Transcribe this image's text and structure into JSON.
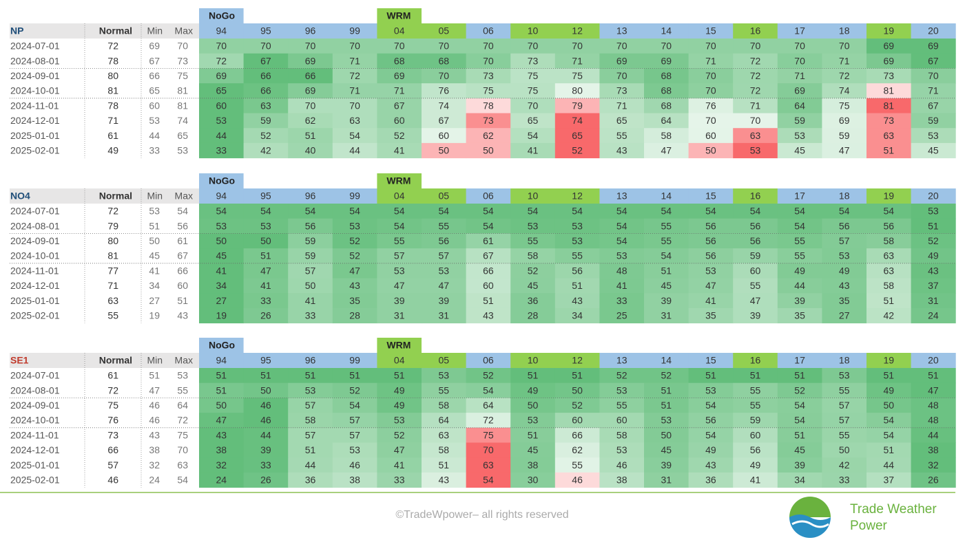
{
  "tables": [
    {
      "region": "NP",
      "region_color": "#1f4e79",
      "headers": [
        "Normal",
        "Min",
        "Max"
      ],
      "columns": [
        {
          "label": "94",
          "group": "NoGo",
          "color": "#9dc3e6"
        },
        {
          "label": "95",
          "color": "#9dc3e6"
        },
        {
          "label": "96",
          "color": "#9dc3e6"
        },
        {
          "label": "99",
          "color": "#9dc3e6"
        },
        {
          "label": "04",
          "group": "WRM",
          "color": "#92d050"
        },
        {
          "label": "05",
          "color": "#92d050"
        },
        {
          "label": "06",
          "color": "#9dc3e6"
        },
        {
          "label": "10",
          "color": "#92d050"
        },
        {
          "label": "12",
          "color": "#92d050"
        },
        {
          "label": "13",
          "color": "#9dc3e6"
        },
        {
          "label": "14",
          "color": "#9dc3e6"
        },
        {
          "label": "15",
          "color": "#9dc3e6"
        },
        {
          "label": "16",
          "color": "#92d050"
        },
        {
          "label": "17",
          "color": "#9dc3e6"
        },
        {
          "label": "18",
          "color": "#9dc3e6"
        },
        {
          "label": "19",
          "color": "#92d050"
        },
        {
          "label": "20",
          "color": "#9dc3e6"
        }
      ],
      "rows": [
        {
          "date": "2024-07-01",
          "normal": 72,
          "min": 69,
          "max": 70,
          "values": [
            70,
            70,
            70,
            70,
            70,
            70,
            70,
            70,
            70,
            70,
            70,
            70,
            70,
            70,
            70,
            69,
            69
          ]
        },
        {
          "date": "2024-08-01",
          "normal": 78,
          "min": 67,
          "max": 73,
          "values": [
            72,
            67,
            69,
            71,
            68,
            68,
            70,
            73,
            71,
            69,
            69,
            71,
            72,
            70,
            71,
            69,
            67
          ]
        },
        {
          "date": "2024-09-01",
          "normal": 80,
          "min": 66,
          "max": 75,
          "values": [
            69,
            66,
            66,
            72,
            69,
            70,
            73,
            75,
            75,
            70,
            68,
            70,
            72,
            71,
            72,
            73,
            70
          ]
        },
        {
          "date": "2024-10-01",
          "normal": 81,
          "min": 65,
          "max": 81,
          "values": [
            65,
            66,
            69,
            71,
            71,
            76,
            75,
            75,
            80,
            73,
            68,
            70,
            72,
            69,
            74,
            81,
            71
          ]
        },
        {
          "date": "2024-11-01",
          "normal": 78,
          "min": 60,
          "max": 81,
          "values": [
            60,
            63,
            70,
            70,
            67,
            74,
            78,
            70,
            79,
            71,
            68,
            76,
            71,
            64,
            75,
            81,
            67
          ]
        },
        {
          "date": "2024-12-01",
          "normal": 71,
          "min": 53,
          "max": 74,
          "values": [
            53,
            59,
            62,
            63,
            60,
            67,
            73,
            65,
            74,
            65,
            64,
            70,
            70,
            59,
            69,
            73,
            59
          ]
        },
        {
          "date": "2025-01-01",
          "normal": 61,
          "min": 44,
          "max": 65,
          "values": [
            44,
            52,
            51,
            54,
            52,
            60,
            62,
            54,
            65,
            55,
            58,
            60,
            63,
            53,
            59,
            63,
            53
          ]
        },
        {
          "date": "2025-02-01",
          "normal": 49,
          "min": 33,
          "max": 53,
          "values": [
            33,
            42,
            40,
            44,
            41,
            50,
            50,
            41,
            52,
            43,
            47,
            50,
            53,
            45,
            47,
            51,
            45
          ]
        }
      ]
    },
    {
      "region": "NO4",
      "region_color": "#1f4e79",
      "headers": [
        "Normal",
        "Min",
        "Max"
      ],
      "columns": [
        {
          "label": "94",
          "group": "NoGo",
          "color": "#9dc3e6"
        },
        {
          "label": "95",
          "color": "#9dc3e6"
        },
        {
          "label": "96",
          "color": "#9dc3e6"
        },
        {
          "label": "99",
          "color": "#9dc3e6"
        },
        {
          "label": "04",
          "group": "WRM",
          "color": "#92d050"
        },
        {
          "label": "05",
          "color": "#92d050"
        },
        {
          "label": "06",
          "color": "#9dc3e6"
        },
        {
          "label": "10",
          "color": "#92d050"
        },
        {
          "label": "12",
          "color": "#92d050"
        },
        {
          "label": "13",
          "color": "#9dc3e6"
        },
        {
          "label": "14",
          "color": "#9dc3e6"
        },
        {
          "label": "15",
          "color": "#9dc3e6"
        },
        {
          "label": "16",
          "color": "#92d050"
        },
        {
          "label": "17",
          "color": "#9dc3e6"
        },
        {
          "label": "18",
          "color": "#9dc3e6"
        },
        {
          "label": "19",
          "color": "#92d050"
        },
        {
          "label": "20",
          "color": "#9dc3e6"
        }
      ],
      "rows": [
        {
          "date": "2024-07-01",
          "normal": 72,
          "min": 53,
          "max": 54,
          "values": [
            54,
            54,
            54,
            54,
            54,
            54,
            54,
            54,
            54,
            54,
            54,
            54,
            54,
            54,
            54,
            54,
            53
          ]
        },
        {
          "date": "2024-08-01",
          "normal": 79,
          "min": 51,
          "max": 56,
          "values": [
            53,
            53,
            56,
            53,
            54,
            55,
            54,
            53,
            53,
            54,
            55,
            56,
            56,
            54,
            56,
            56,
            51
          ]
        },
        {
          "date": "2024-09-01",
          "normal": 80,
          "min": 50,
          "max": 61,
          "values": [
            50,
            50,
            59,
            52,
            55,
            56,
            61,
            55,
            53,
            54,
            55,
            56,
            56,
            55,
            57,
            58,
            52
          ]
        },
        {
          "date": "2024-10-01",
          "normal": 81,
          "min": 45,
          "max": 67,
          "values": [
            45,
            51,
            59,
            52,
            57,
            57,
            67,
            58,
            55,
            53,
            54,
            56,
            59,
            55,
            53,
            63,
            49
          ]
        },
        {
          "date": "2024-11-01",
          "normal": 77,
          "min": 41,
          "max": 66,
          "values": [
            41,
            47,
            57,
            47,
            53,
            53,
            66,
            52,
            56,
            48,
            51,
            53,
            60,
            49,
            49,
            63,
            43
          ]
        },
        {
          "date": "2024-12-01",
          "normal": 71,
          "min": 34,
          "max": 60,
          "values": [
            34,
            41,
            50,
            43,
            47,
            47,
            60,
            45,
            51,
            41,
            45,
            47,
            55,
            44,
            43,
            58,
            37
          ]
        },
        {
          "date": "2025-01-01",
          "normal": 63,
          "min": 27,
          "max": 51,
          "values": [
            27,
            33,
            41,
            35,
            39,
            39,
            51,
            36,
            43,
            33,
            39,
            41,
            47,
            39,
            35,
            51,
            31
          ]
        },
        {
          "date": "2025-02-01",
          "normal": 55,
          "min": 19,
          "max": 43,
          "values": [
            19,
            26,
            33,
            28,
            31,
            31,
            43,
            28,
            34,
            25,
            31,
            35,
            39,
            35,
            27,
            42,
            24
          ]
        }
      ]
    },
    {
      "region": "SE1",
      "region_color": "#c0392b",
      "headers": [
        "Normal",
        "Min",
        "Max"
      ],
      "columns": [
        {
          "label": "94",
          "group": "NoGo",
          "color": "#9dc3e6"
        },
        {
          "label": "95",
          "color": "#9dc3e6"
        },
        {
          "label": "96",
          "color": "#9dc3e6"
        },
        {
          "label": "99",
          "color": "#9dc3e6"
        },
        {
          "label": "04",
          "group": "WRM",
          "color": "#92d050"
        },
        {
          "label": "05",
          "color": "#92d050"
        },
        {
          "label": "06",
          "color": "#9dc3e6"
        },
        {
          "label": "10",
          "color": "#92d050"
        },
        {
          "label": "12",
          "color": "#92d050"
        },
        {
          "label": "13",
          "color": "#9dc3e6"
        },
        {
          "label": "14",
          "color": "#9dc3e6"
        },
        {
          "label": "15",
          "color": "#9dc3e6"
        },
        {
          "label": "16",
          "color": "#92d050"
        },
        {
          "label": "17",
          "color": "#9dc3e6"
        },
        {
          "label": "18",
          "color": "#9dc3e6"
        },
        {
          "label": "19",
          "color": "#92d050"
        },
        {
          "label": "20",
          "color": "#9dc3e6"
        }
      ],
      "rows": [
        {
          "date": "2024-07-01",
          "normal": 61,
          "min": 51,
          "max": 53,
          "values": [
            51,
            51,
            51,
            51,
            51,
            53,
            52,
            51,
            51,
            52,
            52,
            51,
            51,
            51,
            53,
            51,
            51
          ]
        },
        {
          "date": "2024-08-01",
          "normal": 72,
          "min": 47,
          "max": 55,
          "values": [
            51,
            50,
            53,
            52,
            49,
            55,
            54,
            49,
            50,
            53,
            51,
            53,
            55,
            52,
            55,
            49,
            47
          ]
        },
        {
          "date": "2024-09-01",
          "normal": 75,
          "min": 46,
          "max": 64,
          "values": [
            50,
            46,
            57,
            54,
            49,
            58,
            64,
            50,
            52,
            55,
            51,
            54,
            55,
            54,
            57,
            50,
            48
          ]
        },
        {
          "date": "2024-10-01",
          "normal": 76,
          "min": 46,
          "max": 72,
          "values": [
            47,
            46,
            58,
            57,
            53,
            64,
            72,
            53,
            60,
            60,
            53,
            56,
            59,
            54,
            57,
            54,
            48
          ]
        },
        {
          "date": "2024-11-01",
          "normal": 73,
          "min": 43,
          "max": 75,
          "values": [
            43,
            44,
            57,
            57,
            52,
            63,
            75,
            51,
            66,
            58,
            50,
            54,
            60,
            51,
            55,
            54,
            44
          ]
        },
        {
          "date": "2024-12-01",
          "normal": 66,
          "min": 38,
          "max": 70,
          "values": [
            38,
            39,
            51,
            53,
            47,
            58,
            70,
            45,
            62,
            53,
            45,
            49,
            56,
            45,
            50,
            51,
            38
          ]
        },
        {
          "date": "2025-01-01",
          "normal": 57,
          "min": 32,
          "max": 63,
          "values": [
            32,
            33,
            44,
            46,
            41,
            51,
            63,
            38,
            55,
            46,
            39,
            43,
            49,
            39,
            42,
            44,
            32
          ]
        },
        {
          "date": "2025-02-01",
          "normal": 46,
          "min": 24,
          "max": 54,
          "values": [
            24,
            26,
            36,
            38,
            33,
            43,
            54,
            30,
            46,
            38,
            31,
            36,
            41,
            34,
            33,
            37,
            26
          ]
        }
      ]
    }
  ],
  "footer": {
    "copyright": "©TradeWpower– all rights reserved",
    "logo_line1": "Trade Weather",
    "logo_line2": "Power"
  }
}
